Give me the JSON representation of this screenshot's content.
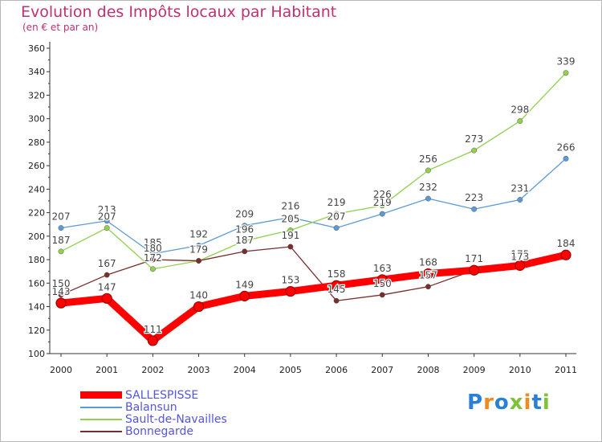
{
  "header": {
    "title": "Evolution des Impôts locaux par Habitant",
    "subtitle": "(en € et par an)"
  },
  "logo": {
    "text": "Proxiti",
    "letters": [
      {
        "ch": "P",
        "color": "#2a7fd6"
      },
      {
        "ch": "r",
        "color": "#f08a1c"
      },
      {
        "ch": "o",
        "color": "#2a7fd6"
      },
      {
        "ch": "x",
        "color": "#7dc23a"
      },
      {
        "ch": "i",
        "color": "#f08a1c"
      },
      {
        "ch": "t",
        "color": "#2a7fd6"
      },
      {
        "ch": "i",
        "color": "#7dc23a"
      }
    ]
  },
  "chart_data": {
    "type": "line",
    "title": "Evolution des Impôts locaux par Habitant",
    "subtitle": "(en € et par an)",
    "x": [
      2000,
      2001,
      2002,
      2003,
      2004,
      2005,
      2006,
      2007,
      2008,
      2009,
      2010,
      2011
    ],
    "ylim": [
      100,
      360
    ],
    "yticks": [
      100,
      120,
      140,
      160,
      180,
      200,
      220,
      240,
      260,
      280,
      300,
      320,
      340,
      360
    ],
    "grid": false,
    "legend_position": "bottom-left",
    "series": [
      {
        "name": "SALLESPISSE",
        "color": "#ff0000",
        "values": [
          143,
          147,
          111,
          140,
          149,
          153,
          158,
          163,
          168,
          171,
          175,
          184
        ]
      },
      {
        "name": "Balansun",
        "color": "#5b9bd5",
        "values": [
          207,
          213,
          185,
          192,
          209,
          216,
          207,
          219,
          232,
          223,
          231,
          266
        ]
      },
      {
        "name": "Sault-de-Navailles",
        "color": "#92d050",
        "values": [
          187,
          207,
          172,
          179,
          196,
          205,
          219,
          226,
          256,
          273,
          298,
          339
        ]
      },
      {
        "name": "Bonnegarde",
        "color": "#7b2c2c",
        "values": [
          150,
          167,
          180,
          179,
          187,
          191,
          145,
          150,
          157,
          171,
          173,
          184
        ]
      }
    ]
  }
}
